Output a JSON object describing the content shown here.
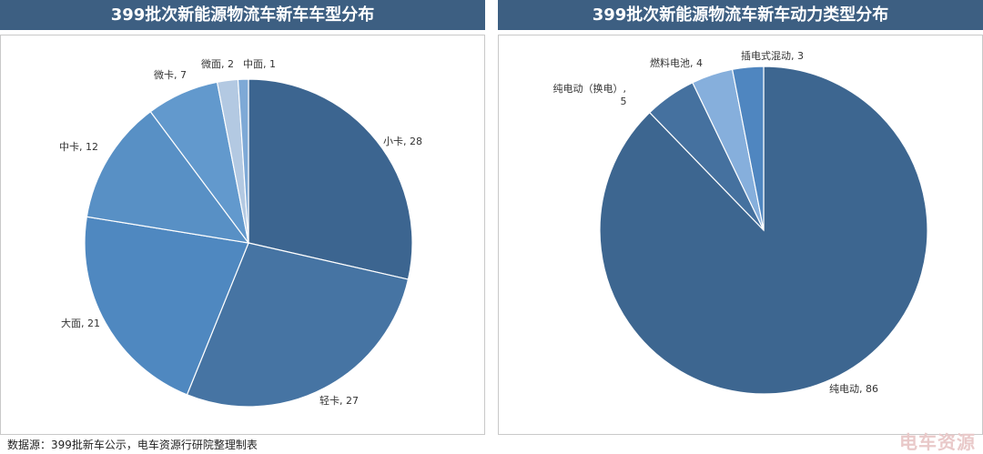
{
  "chart_data": [
    {
      "type": "pie",
      "title": "399批次新能源物流车新车车型分布",
      "slices": [
        {
          "label": "小卡, 28",
          "value": 28,
          "color": "#3c6590"
        },
        {
          "label": "轻卡, 27",
          "value": 27,
          "color": "#4674a3"
        },
        {
          "label": "大面, 21",
          "value": 21,
          "color": "#4f88c0"
        },
        {
          "label": "中卡, 12",
          "value": 12,
          "color": "#5890c5"
        },
        {
          "label": "微卡, 7",
          "value": 7,
          "color": "#6299cd"
        },
        {
          "label": "微面, 2",
          "value": 2,
          "color": "#b3c9e2"
        },
        {
          "label": "中面, 1",
          "value": 1,
          "color": "#7ea9d6"
        }
      ]
    },
    {
      "type": "pie",
      "title": "399批次新能源物流车新车动力类型分布",
      "slices": [
        {
          "label": "纯电动, 86",
          "value": 86,
          "color": "#3d6690"
        },
        {
          "label": "纯电动（换电）, 5",
          "value": 5,
          "color": "#45719f"
        },
        {
          "label": "燃料电池, 4",
          "value": 4,
          "color": "#86afdc"
        },
        {
          "label": "插电式混动, 3",
          "value": 3,
          "color": "#4f86c0"
        }
      ]
    }
  ],
  "footer": {
    "source": "数据源：399批新车公示，电车资源行研院整理制表",
    "watermark": "电车资源"
  }
}
